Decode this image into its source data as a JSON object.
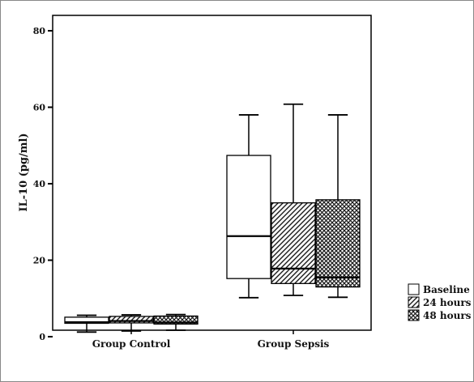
{
  "chart_data": {
    "type": "box",
    "title": "",
    "xlabel": "",
    "ylabel": "IL-10 (pg/ml)",
    "ylim": [
      -3,
      84
    ],
    "yticks": [
      0,
      20,
      40,
      60,
      80
    ],
    "categories": [
      "Group Control",
      "Group Sepsis"
    ],
    "legend_position": "right",
    "grid": false,
    "series": [
      {
        "name": "Baseline",
        "pattern": "none",
        "boxes": [
          {
            "min": 1.2,
            "q1": 3.5,
            "median": 3.8,
            "q3": 5.1,
            "max": 5.6
          },
          {
            "min": 10.2,
            "q1": 15.2,
            "median": 26.3,
            "q3": 47.4,
            "max": 58.0
          }
        ]
      },
      {
        "name": "24 hours",
        "pattern": "hatch-diagonal",
        "boxes": [
          {
            "min": 1.5,
            "q1": 3.6,
            "median": 4.1,
            "q3": 5.3,
            "max": 5.7
          },
          {
            "min": 10.8,
            "q1": 13.9,
            "median": 17.8,
            "q3": 35.0,
            "max": 60.8
          }
        ]
      },
      {
        "name": "48 hours",
        "pattern": "crosshatch",
        "boxes": [
          {
            "min": 1.7,
            "q1": 3.3,
            "median": 3.7,
            "q3": 5.4,
            "max": 5.8
          },
          {
            "min": 10.3,
            "q1": 13.0,
            "median": 15.5,
            "q3": 35.8,
            "max": 58.0
          }
        ]
      }
    ]
  }
}
